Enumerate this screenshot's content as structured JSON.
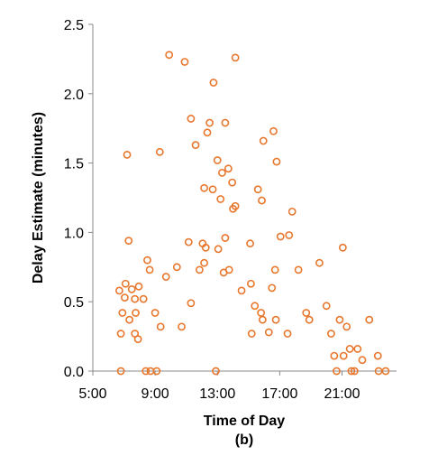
{
  "chart_data": {
    "type": "scatter",
    "xlabel": "Time of Day",
    "ylabel": "Delay Estimate (minutes)",
    "panel_label": "(b)",
    "x_unit": "hours",
    "xlim": [
      5,
      24.5
    ],
    "ylim": [
      0,
      2.5
    ],
    "x_ticks": [
      {
        "value": 5,
        "label": "5:00"
      },
      {
        "value": 9,
        "label": "9:00"
      },
      {
        "value": 13,
        "label": "13:00"
      },
      {
        "value": 17,
        "label": "17:00"
      },
      {
        "value": 21,
        "label": "21:00"
      }
    ],
    "y_ticks": [
      {
        "value": 0,
        "label": "0.0"
      },
      {
        "value": 0.5,
        "label": "0.5"
      },
      {
        "value": 1.0,
        "label": "1.0"
      },
      {
        "value": 1.5,
        "label": "1.5"
      },
      {
        "value": 2.0,
        "label": "2.0"
      },
      {
        "value": 2.5,
        "label": "2.5"
      }
    ],
    "grid": false,
    "marker_color": "#E8772E",
    "axis_color": "#888888",
    "points": [
      {
        "x": 6.7,
        "y": 0.58
      },
      {
        "x": 6.8,
        "y": 0.27
      },
      {
        "x": 6.8,
        "y": 0.0
      },
      {
        "x": 6.9,
        "y": 0.42
      },
      {
        "x": 7.05,
        "y": 0.53
      },
      {
        "x": 7.1,
        "y": 0.63
      },
      {
        "x": 7.2,
        "y": 1.56
      },
      {
        "x": 7.3,
        "y": 0.94
      },
      {
        "x": 7.35,
        "y": 0.37
      },
      {
        "x": 7.5,
        "y": 0.59
      },
      {
        "x": 7.7,
        "y": 0.27
      },
      {
        "x": 7.7,
        "y": 0.52
      },
      {
        "x": 7.75,
        "y": 0.42
      },
      {
        "x": 7.9,
        "y": 0.23
      },
      {
        "x": 7.95,
        "y": 0.61
      },
      {
        "x": 8.25,
        "y": 0.52
      },
      {
        "x": 8.4,
        "y": 0.0
      },
      {
        "x": 8.5,
        "y": 0.8
      },
      {
        "x": 8.65,
        "y": 0.73
      },
      {
        "x": 8.7,
        "y": 0.0
      },
      {
        "x": 9.0,
        "y": 0.42
      },
      {
        "x": 9.1,
        "y": 0.0
      },
      {
        "x": 9.3,
        "y": 1.58
      },
      {
        "x": 9.35,
        "y": 0.32
      },
      {
        "x": 9.7,
        "y": 0.68
      },
      {
        "x": 9.9,
        "y": 2.28
      },
      {
        "x": 10.4,
        "y": 0.75
      },
      {
        "x": 10.7,
        "y": 0.32
      },
      {
        "x": 10.9,
        "y": 2.23
      },
      {
        "x": 11.15,
        "y": 0.93
      },
      {
        "x": 11.3,
        "y": 1.82
      },
      {
        "x": 11.3,
        "y": 0.49
      },
      {
        "x": 11.6,
        "y": 1.63
      },
      {
        "x": 11.85,
        "y": 0.73
      },
      {
        "x": 12.05,
        "y": 0.92
      },
      {
        "x": 12.15,
        "y": 1.32
      },
      {
        "x": 12.15,
        "y": 0.78
      },
      {
        "x": 12.25,
        "y": 0.89
      },
      {
        "x": 12.35,
        "y": 1.72
      },
      {
        "x": 12.5,
        "y": 1.79
      },
      {
        "x": 12.7,
        "y": 1.31
      },
      {
        "x": 12.75,
        "y": 2.08
      },
      {
        "x": 12.9,
        "y": 0.0
      },
      {
        "x": 13.0,
        "y": 1.52
      },
      {
        "x": 13.05,
        "y": 0.88
      },
      {
        "x": 13.2,
        "y": 1.24
      },
      {
        "x": 13.3,
        "y": 1.43
      },
      {
        "x": 13.4,
        "y": 0.71
      },
      {
        "x": 13.5,
        "y": 0.96
      },
      {
        "x": 13.5,
        "y": 1.79
      },
      {
        "x": 13.7,
        "y": 1.46
      },
      {
        "x": 13.75,
        "y": 0.73
      },
      {
        "x": 13.95,
        "y": 1.36
      },
      {
        "x": 14.0,
        "y": 1.17
      },
      {
        "x": 14.15,
        "y": 1.19
      },
      {
        "x": 14.15,
        "y": 2.26
      },
      {
        "x": 14.55,
        "y": 0.58
      },
      {
        "x": 15.1,
        "y": 0.92
      },
      {
        "x": 15.15,
        "y": 0.63
      },
      {
        "x": 15.2,
        "y": 0.27
      },
      {
        "x": 15.4,
        "y": 0.47
      },
      {
        "x": 15.6,
        "y": 1.31
      },
      {
        "x": 15.8,
        "y": 0.42
      },
      {
        "x": 15.85,
        "y": 1.23
      },
      {
        "x": 15.9,
        "y": 0.37
      },
      {
        "x": 15.95,
        "y": 1.66
      },
      {
        "x": 16.3,
        "y": 0.28
      },
      {
        "x": 16.5,
        "y": 0.6
      },
      {
        "x": 16.6,
        "y": 1.73
      },
      {
        "x": 16.7,
        "y": 0.73
      },
      {
        "x": 16.75,
        "y": 0.37
      },
      {
        "x": 16.8,
        "y": 1.51
      },
      {
        "x": 17.05,
        "y": 0.97
      },
      {
        "x": 17.5,
        "y": 0.27
      },
      {
        "x": 17.6,
        "y": 0.98
      },
      {
        "x": 17.8,
        "y": 1.15
      },
      {
        "x": 18.2,
        "y": 0.73
      },
      {
        "x": 18.7,
        "y": 0.42
      },
      {
        "x": 18.9,
        "y": 0.37
      },
      {
        "x": 19.55,
        "y": 0.78
      },
      {
        "x": 20.0,
        "y": 0.47
      },
      {
        "x": 20.3,
        "y": 0.27
      },
      {
        "x": 20.5,
        "y": 0.11
      },
      {
        "x": 20.65,
        "y": 0.0
      },
      {
        "x": 20.85,
        "y": 0.37
      },
      {
        "x": 21.05,
        "y": 0.89
      },
      {
        "x": 21.1,
        "y": 0.11
      },
      {
        "x": 21.3,
        "y": 0.32
      },
      {
        "x": 21.5,
        "y": 0.16
      },
      {
        "x": 21.6,
        "y": 0.0
      },
      {
        "x": 21.8,
        "y": 0.0
      },
      {
        "x": 22.0,
        "y": 0.16
      },
      {
        "x": 22.3,
        "y": 0.08
      },
      {
        "x": 22.75,
        "y": 0.37
      },
      {
        "x": 23.3,
        "y": 0.11
      },
      {
        "x": 23.35,
        "y": 0.0
      },
      {
        "x": 23.8,
        "y": 0.0
      }
    ]
  }
}
